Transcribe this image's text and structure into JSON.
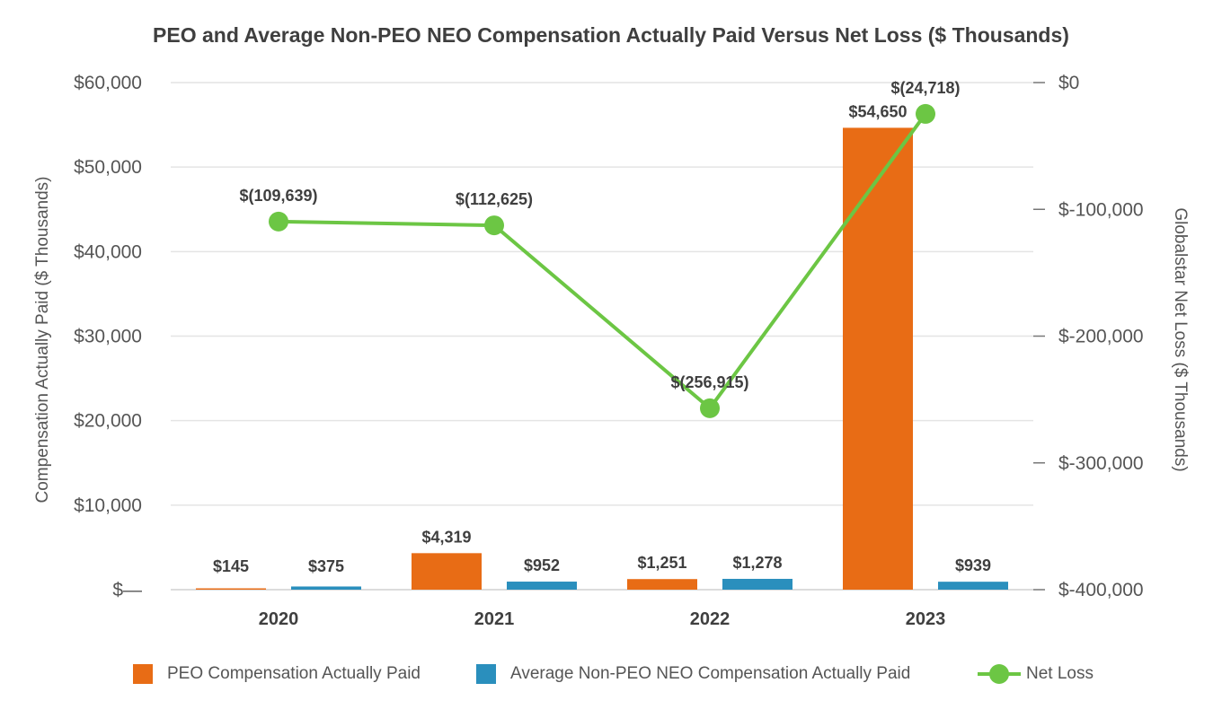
{
  "chart_data": {
    "type": "bar+line",
    "title": "PEO and Average Non-PEO NEO Compensation Actually Paid Versus Net Loss ($ Thousands)",
    "categories": [
      "2020",
      "2021",
      "2022",
      "2023"
    ],
    "ylabel": "Compensation Actually Paid ($ Thousands)",
    "y2label": "Globalstar Net Loss ($ Thousands)",
    "ylim": [
      0,
      60000
    ],
    "y2lim": [
      -400000,
      0
    ],
    "y_ticks": [
      {
        "value": 0,
        "label": "$—"
      },
      {
        "value": 10000,
        "label": "$10,000"
      },
      {
        "value": 20000,
        "label": "$20,000"
      },
      {
        "value": 30000,
        "label": "$30,000"
      },
      {
        "value": 40000,
        "label": "$40,000"
      },
      {
        "value": 50000,
        "label": "$50,000"
      },
      {
        "value": 60000,
        "label": "$60,000"
      }
    ],
    "y2_ticks": [
      {
        "value": 0,
        "label": "$0"
      },
      {
        "value": -100000,
        "label": "$-100,000"
      },
      {
        "value": -200000,
        "label": "$-200,000"
      },
      {
        "value": -300000,
        "label": "$-300,000"
      },
      {
        "value": -400000,
        "label": "$-400,000"
      }
    ],
    "grid": true,
    "legend_position": "bottom",
    "series": [
      {
        "name": "PEO Compensation Actually Paid",
        "type": "bar",
        "axis": "left",
        "color": "#e86c15",
        "values": [
          145,
          4319,
          1251,
          54650
        ],
        "labels": [
          "$145",
          "$4,319",
          "$1,251",
          "$54,650"
        ]
      },
      {
        "name": "Average Non-PEO NEO Compensation Actually Paid",
        "type": "bar",
        "axis": "left",
        "color": "#2a8fbd",
        "values": [
          375,
          952,
          1278,
          939
        ],
        "labels": [
          "$375",
          "$952",
          "$1,278",
          "$939"
        ]
      },
      {
        "name": "Net Loss",
        "type": "line",
        "axis": "right",
        "color": "#6cc644",
        "values": [
          -109639,
          -112625,
          -256915,
          -24718
        ],
        "labels": [
          "$(109,639)",
          "$(112,625)",
          "$(256,915)",
          "$(24,718)"
        ]
      }
    ]
  }
}
